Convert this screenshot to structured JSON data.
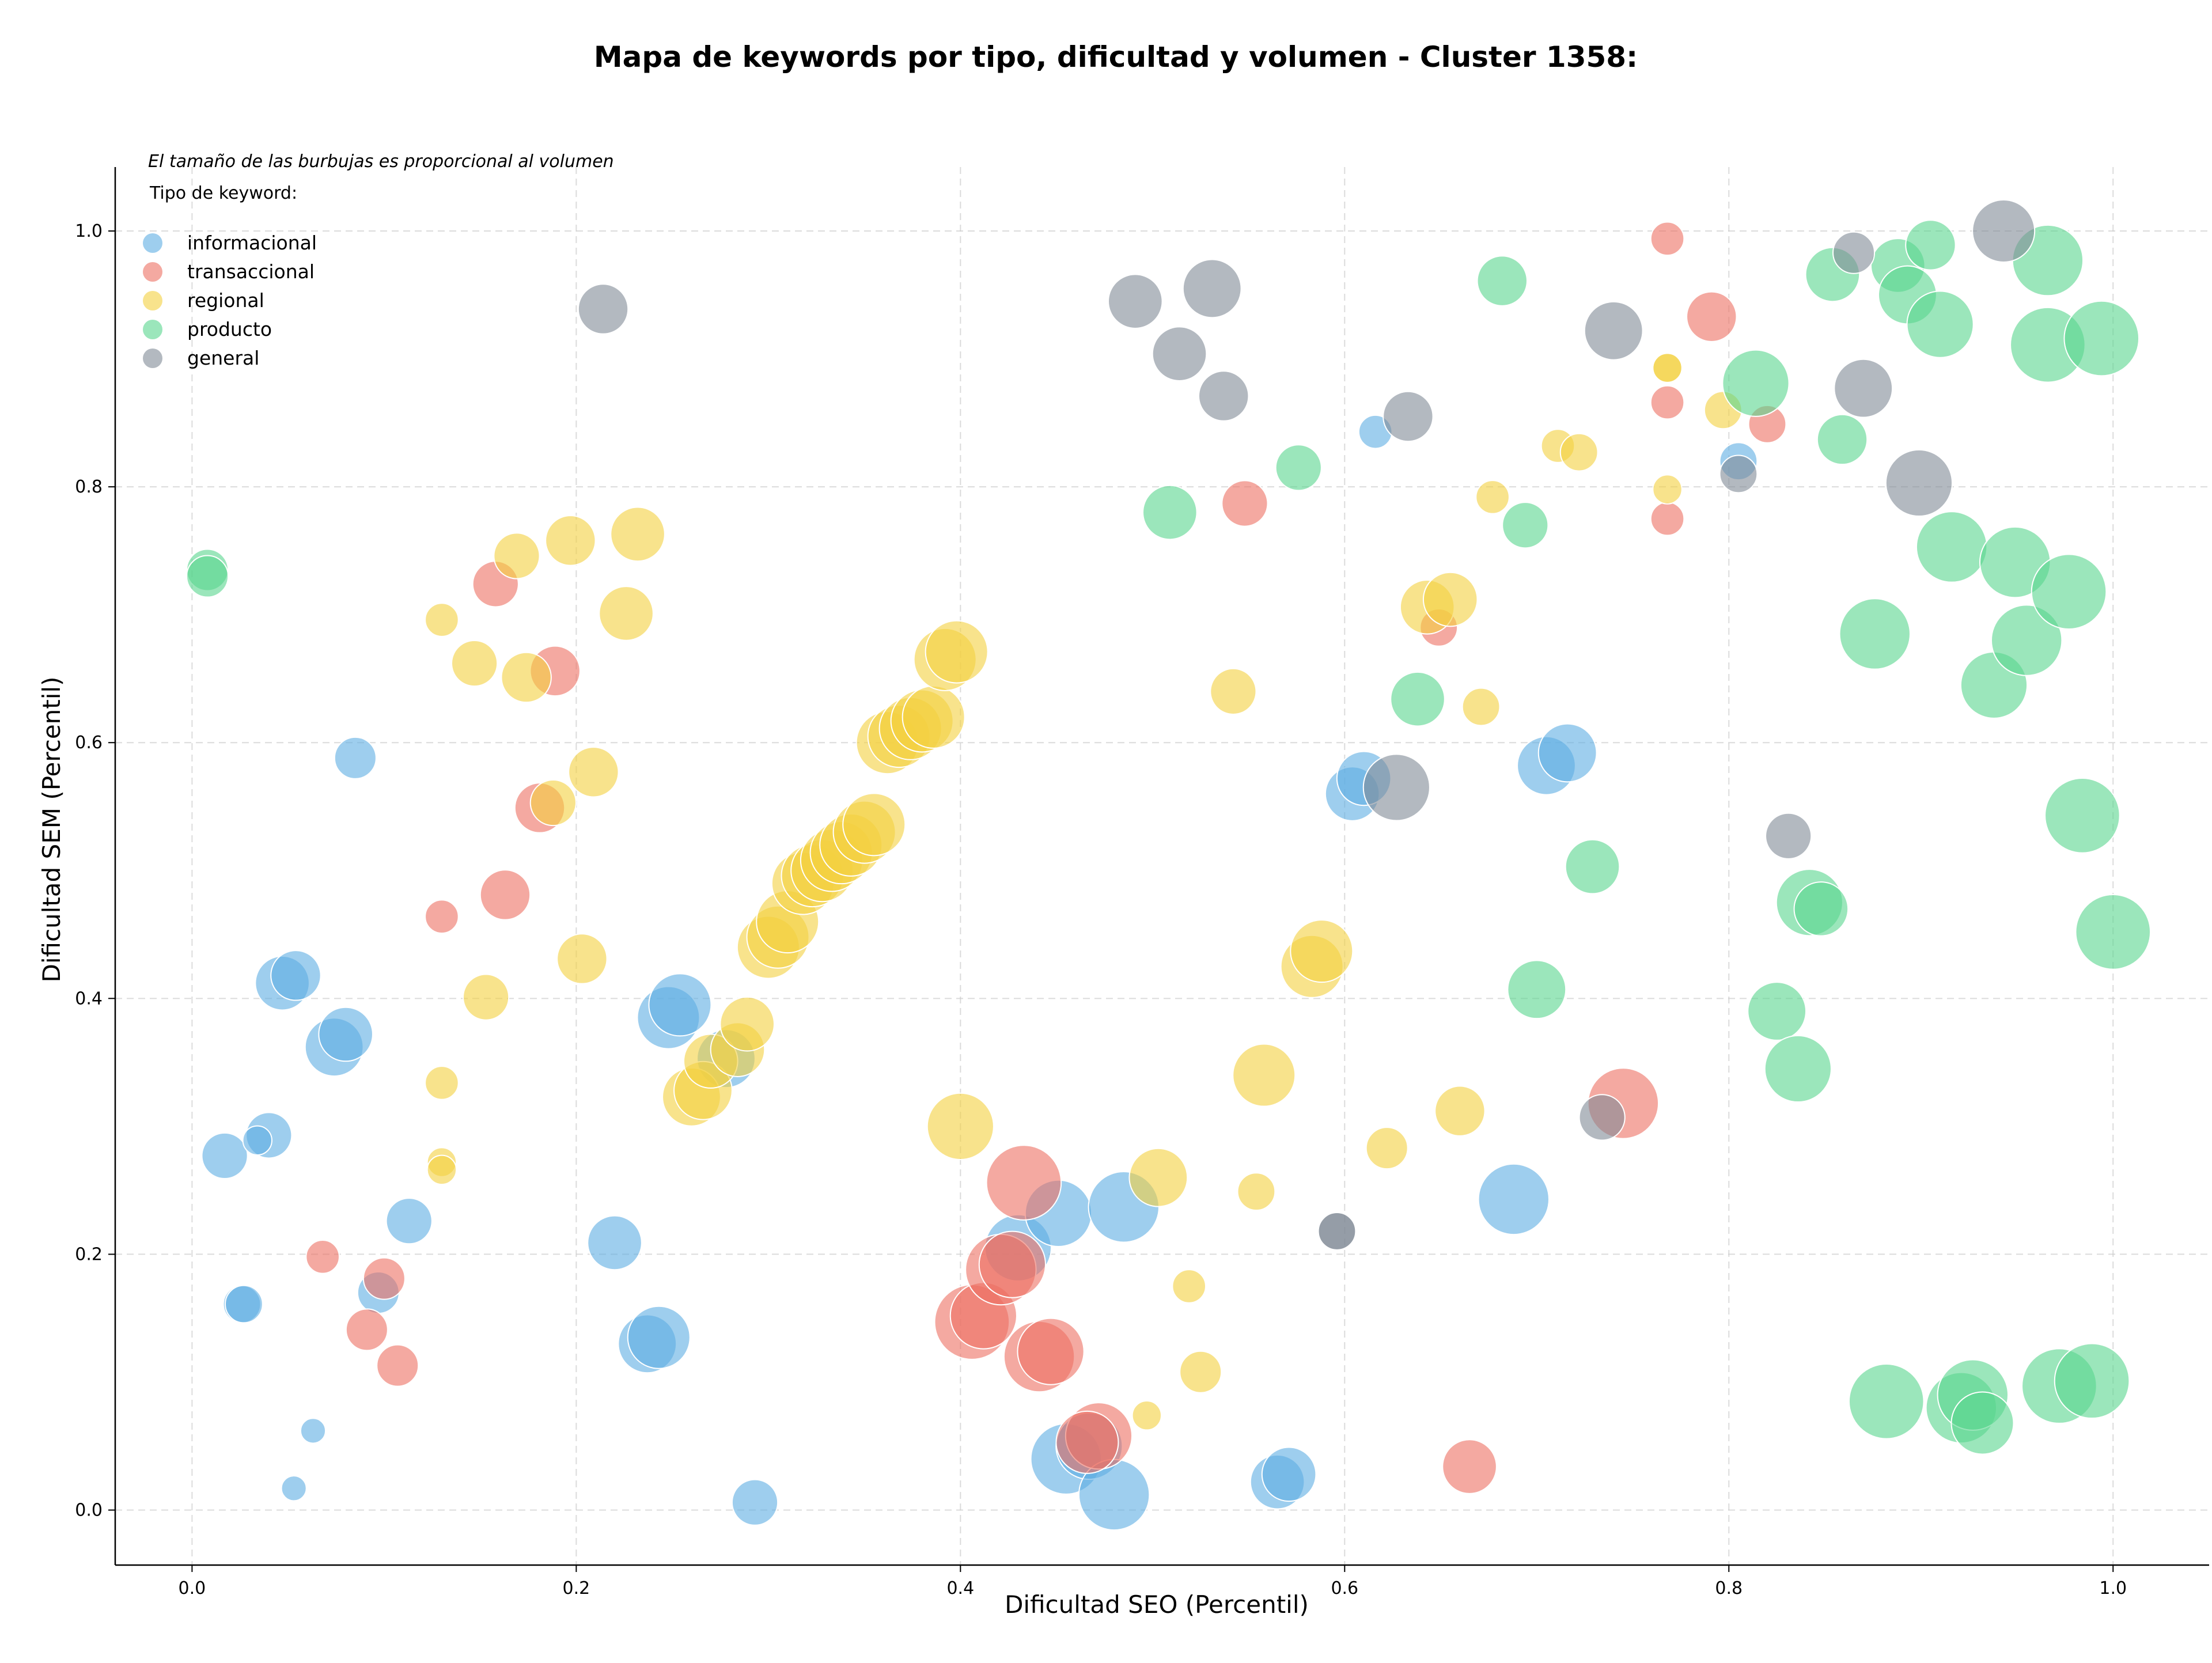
{
  "chart_data": {
    "type": "scatter",
    "title": "Mapa de keywords por tipo, dificultad y volumen - Cluster 1358:",
    "xlabel": "Dificultad SEO (Percentil)",
    "ylabel": "Dificultad SEM (Percentil)",
    "xlim": [
      -0.04,
      1.05
    ],
    "ylim": [
      -0.043,
      1.05
    ],
    "x_ticks": [
      "0.0",
      "0.2",
      "0.4",
      "0.6",
      "0.8",
      "1.0"
    ],
    "y_ticks": [
      "0.0",
      "0.2",
      "0.4",
      "0.6",
      "0.8",
      "1.0"
    ],
    "grid": true,
    "note": "El tamaño de las burbujas es proporcional al volumen",
    "legend_title": "Tipo de keyword:",
    "legend_position": "top-left",
    "series": [
      {
        "name": "informacional",
        "color": "#5DADE2",
        "points": [
          [
            0.085,
            0.588,
            1.0
          ],
          [
            0.047,
            0.412,
            1.3
          ],
          [
            0.054,
            0.418,
            1.2
          ],
          [
            0.074,
            0.362,
            1.4
          ],
          [
            0.08,
            0.372,
            1.3
          ],
          [
            0.017,
            0.277,
            1.1
          ],
          [
            0.04,
            0.293,
            1.1
          ],
          [
            0.034,
            0.289,
            0.7
          ],
          [
            0.113,
            0.226,
            1.1
          ],
          [
            0.026,
            0.161,
            0.9
          ],
          [
            0.027,
            0.161,
            0.9
          ],
          [
            0.097,
            0.17,
            1.0
          ],
          [
            0.063,
            0.062,
            0.6
          ],
          [
            0.053,
            0.017,
            0.6
          ],
          [
            0.22,
            0.209,
            1.3
          ],
          [
            0.237,
            0.13,
            1.4
          ],
          [
            0.243,
            0.135,
            1.5
          ],
          [
            0.248,
            0.385,
            1.5
          ],
          [
            0.254,
            0.395,
            1.5
          ],
          [
            0.278,
            0.353,
            1.4
          ],
          [
            0.293,
            0.006,
            1.1
          ],
          [
            0.43,
            0.205,
            1.6
          ],
          [
            0.451,
            0.232,
            1.6
          ],
          [
            0.485,
            0.237,
            1.7
          ],
          [
            0.455,
            0.04,
            1.7
          ],
          [
            0.467,
            0.05,
            1.6
          ],
          [
            0.48,
            0.012,
            1.7
          ],
          [
            0.565,
            0.022,
            1.3
          ],
          [
            0.571,
            0.028,
            1.3
          ],
          [
            0.604,
            0.56,
            1.3
          ],
          [
            0.61,
            0.572,
            1.3
          ],
          [
            0.616,
            0.843,
            0.8
          ],
          [
            0.688,
            0.243,
            1.7
          ],
          [
            0.705,
            0.582,
            1.4
          ],
          [
            0.716,
            0.592,
            1.4
          ],
          [
            0.805,
            0.82,
            0.9
          ]
        ]
      },
      {
        "name": "transaccional",
        "color": "#EC7063",
        "points": [
          [
            0.158,
            0.724,
            1.1
          ],
          [
            0.181,
            0.549,
            1.2
          ],
          [
            0.189,
            0.656,
            1.2
          ],
          [
            0.163,
            0.481,
            1.2
          ],
          [
            0.13,
            0.464,
            0.8
          ],
          [
            0.068,
            0.198,
            0.8
          ],
          [
            0.1,
            0.181,
            1.0
          ],
          [
            0.091,
            0.141,
            1.0
          ],
          [
            0.107,
            0.113,
            1.0
          ],
          [
            0.433,
            0.256,
            1.8
          ],
          [
            0.406,
            0.147,
            1.8
          ],
          [
            0.412,
            0.152,
            1.6
          ],
          [
            0.421,
            0.188,
            1.7
          ],
          [
            0.427,
            0.192,
            1.6
          ],
          [
            0.441,
            0.12,
            1.7
          ],
          [
            0.447,
            0.124,
            1.6
          ],
          [
            0.472,
            0.058,
            1.6
          ],
          [
            0.466,
            0.053,
            1.5
          ],
          [
            0.548,
            0.787,
            1.1
          ],
          [
            0.649,
            0.69,
            0.9
          ],
          [
            0.665,
            0.034,
            1.3
          ],
          [
            0.745,
            0.318,
            1.7
          ],
          [
            0.768,
            0.994,
            0.8
          ],
          [
            0.768,
            0.866,
            0.8
          ],
          [
            0.768,
            0.775,
            0.8
          ],
          [
            0.791,
            0.933,
            1.2
          ],
          [
            0.82,
            0.849,
            0.9
          ]
        ]
      },
      {
        "name": "regional",
        "color": "#F4D03F",
        "points": [
          [
            0.13,
            0.696,
            0.8
          ],
          [
            0.147,
            0.662,
            1.1
          ],
          [
            0.169,
            0.746,
            1.1
          ],
          [
            0.174,
            0.651,
            1.2
          ],
          [
            0.197,
            0.758,
            1.2
          ],
          [
            0.232,
            0.763,
            1.3
          ],
          [
            0.226,
            0.701,
            1.3
          ],
          [
            0.188,
            0.553,
            1.1
          ],
          [
            0.209,
            0.577,
            1.2
          ],
          [
            0.153,
            0.401,
            1.1
          ],
          [
            0.203,
            0.431,
            1.2
          ],
          [
            0.13,
            0.334,
            0.8
          ],
          [
            0.13,
            0.272,
            0.7
          ],
          [
            0.13,
            0.266,
            0.7
          ],
          [
            0.26,
            0.323,
            1.4
          ],
          [
            0.266,
            0.328,
            1.4
          ],
          [
            0.27,
            0.351,
            1.3
          ],
          [
            0.284,
            0.36,
            1.3
          ],
          [
            0.289,
            0.38,
            1.3
          ],
          [
            0.3,
            0.44,
            1.5
          ],
          [
            0.305,
            0.448,
            1.5
          ],
          [
            0.31,
            0.46,
            1.5
          ],
          [
            0.318,
            0.49,
            1.5
          ],
          [
            0.323,
            0.496,
            1.5
          ],
          [
            0.328,
            0.5,
            1.5
          ],
          [
            0.333,
            0.508,
            1.5
          ],
          [
            0.338,
            0.514,
            1.5
          ],
          [
            0.343,
            0.52,
            1.5
          ],
          [
            0.35,
            0.53,
            1.5
          ],
          [
            0.355,
            0.536,
            1.5
          ],
          [
            0.362,
            0.6,
            1.5
          ],
          [
            0.368,
            0.605,
            1.5
          ],
          [
            0.374,
            0.611,
            1.5
          ],
          [
            0.38,
            0.617,
            1.5
          ],
          [
            0.386,
            0.62,
            1.5
          ],
          [
            0.392,
            0.665,
            1.5
          ],
          [
            0.398,
            0.671,
            1.5
          ],
          [
            0.4,
            0.3,
            1.6
          ],
          [
            0.503,
            0.26,
            1.4
          ],
          [
            0.497,
            0.074,
            0.7
          ],
          [
            0.519,
            0.175,
            0.8
          ],
          [
            0.525,
            0.108,
            1.0
          ],
          [
            0.554,
            0.249,
            0.9
          ],
          [
            0.542,
            0.64,
            1.1
          ],
          [
            0.558,
            0.34,
            1.5
          ],
          [
            0.583,
            0.425,
            1.5
          ],
          [
            0.588,
            0.437,
            1.5
          ],
          [
            0.622,
            0.283,
            1.0
          ],
          [
            0.643,
            0.706,
            1.3
          ],
          [
            0.655,
            0.712,
            1.3
          ],
          [
            0.66,
            0.312,
            1.2
          ],
          [
            0.671,
            0.628,
            0.9
          ],
          [
            0.677,
            0.792,
            0.8
          ],
          [
            0.711,
            0.832,
            0.8
          ],
          [
            0.722,
            0.827,
            0.9
          ],
          [
            0.768,
            0.893,
            0.7
          ],
          [
            0.768,
            0.893,
            0.7
          ],
          [
            0.768,
            0.798,
            0.7
          ],
          [
            0.797,
            0.86,
            0.9
          ]
        ]
      },
      {
        "name": "producto",
        "color": "#58D68D",
        "points": [
          [
            0.008,
            0.735,
            1.0
          ],
          [
            0.008,
            0.73,
            1.0
          ],
          [
            0.509,
            0.78,
            1.3
          ],
          [
            0.576,
            0.815,
            1.1
          ],
          [
            0.638,
            0.634,
            1.3
          ],
          [
            0.682,
            0.961,
            1.2
          ],
          [
            0.694,
            0.77,
            1.1
          ],
          [
            0.7,
            0.407,
            1.4
          ],
          [
            0.729,
            0.503,
            1.3
          ],
          [
            0.814,
            0.881,
            1.6
          ],
          [
            0.825,
            0.39,
            1.4
          ],
          [
            0.836,
            0.345,
            1.6
          ],
          [
            0.842,
            0.475,
            1.6
          ],
          [
            0.848,
            0.47,
            1.3
          ],
          [
            0.854,
            0.966,
            1.3
          ],
          [
            0.859,
            0.837,
            1.2
          ],
          [
            0.876,
            0.685,
            1.7
          ],
          [
            0.882,
            0.085,
            1.8
          ],
          [
            0.888,
            0.973,
            1.3
          ],
          [
            0.893,
            0.95,
            1.4
          ],
          [
            0.905,
            0.989,
            1.2
          ],
          [
            0.91,
            0.927,
            1.6
          ],
          [
            0.916,
            0.753,
            1.7
          ],
          [
            0.921,
            0.08,
            1.7
          ],
          [
            0.927,
            0.09,
            1.7
          ],
          [
            0.932,
            0.068,
            1.5
          ],
          [
            0.938,
            0.645,
            1.6
          ],
          [
            0.949,
            0.741,
            1.7
          ],
          [
            0.955,
            0.68,
            1.7
          ],
          [
            0.966,
            0.977,
            1.7
          ],
          [
            0.966,
            0.911,
            1.8
          ],
          [
            0.972,
            0.097,
            1.8
          ],
          [
            0.977,
            0.718,
            1.8
          ],
          [
            0.984,
            0.543,
            1.8
          ],
          [
            0.989,
            0.101,
            1.8
          ],
          [
            0.994,
            0.916,
            1.8
          ],
          [
            1.0,
            0.452,
            1.8
          ]
        ]
      },
      {
        "name": "general",
        "color": "#808B96",
        "points": [
          [
            0.214,
            0.939,
            1.2
          ],
          [
            0.491,
            0.945,
            1.3
          ],
          [
            0.514,
            0.904,
            1.3
          ],
          [
            0.531,
            0.955,
            1.4
          ],
          [
            0.537,
            0.871,
            1.2
          ],
          [
            0.596,
            0.218,
            0.9
          ],
          [
            0.596,
            0.218,
            0.9
          ],
          [
            0.627,
            0.565,
            1.6
          ],
          [
            0.633,
            0.855,
            1.2
          ],
          [
            0.734,
            0.307,
            1.1
          ],
          [
            0.74,
            0.922,
            1.4
          ],
          [
            0.805,
            0.81,
            0.9
          ],
          [
            0.831,
            0.527,
            1.1
          ],
          [
            0.865,
            0.983,
            1.0
          ],
          [
            0.87,
            0.877,
            1.4
          ],
          [
            0.899,
            0.803,
            1.6
          ],
          [
            0.943,
            1.0,
            1.5
          ]
        ]
      }
    ]
  }
}
